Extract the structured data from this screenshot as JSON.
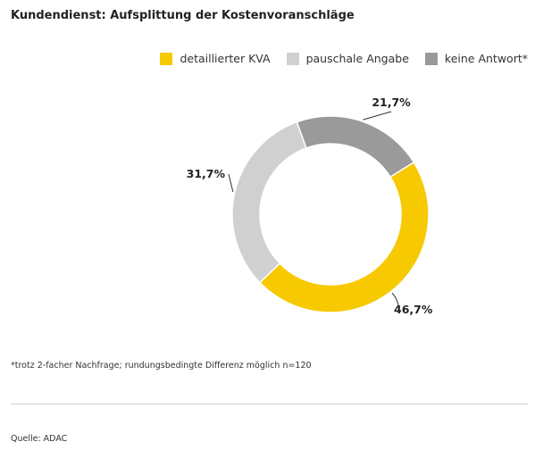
{
  "chart_data": {
    "type": "pie",
    "style": "donut",
    "title": "Kundendienst: Aufsplittung der Kostenvoranschläge",
    "legend_position": "top-right",
    "slices": [
      {
        "name": "detaillierter KVA",
        "value": 46.7,
        "label": "46,7%",
        "color": "#f7c900"
      },
      {
        "name": "pauschale Angabe",
        "value": 31.7,
        "label": "31,7%",
        "color": "#d0d0d0"
      },
      {
        "name": "keine Antwort*",
        "value": 21.7,
        "label": "21,7%",
        "color": "#9a9a9a"
      }
    ]
  },
  "footnote": "*trotz 2-facher Nachfrage; rundungsbedingte Differenz möglich n=120",
  "source": "Quelle: ADAC"
}
